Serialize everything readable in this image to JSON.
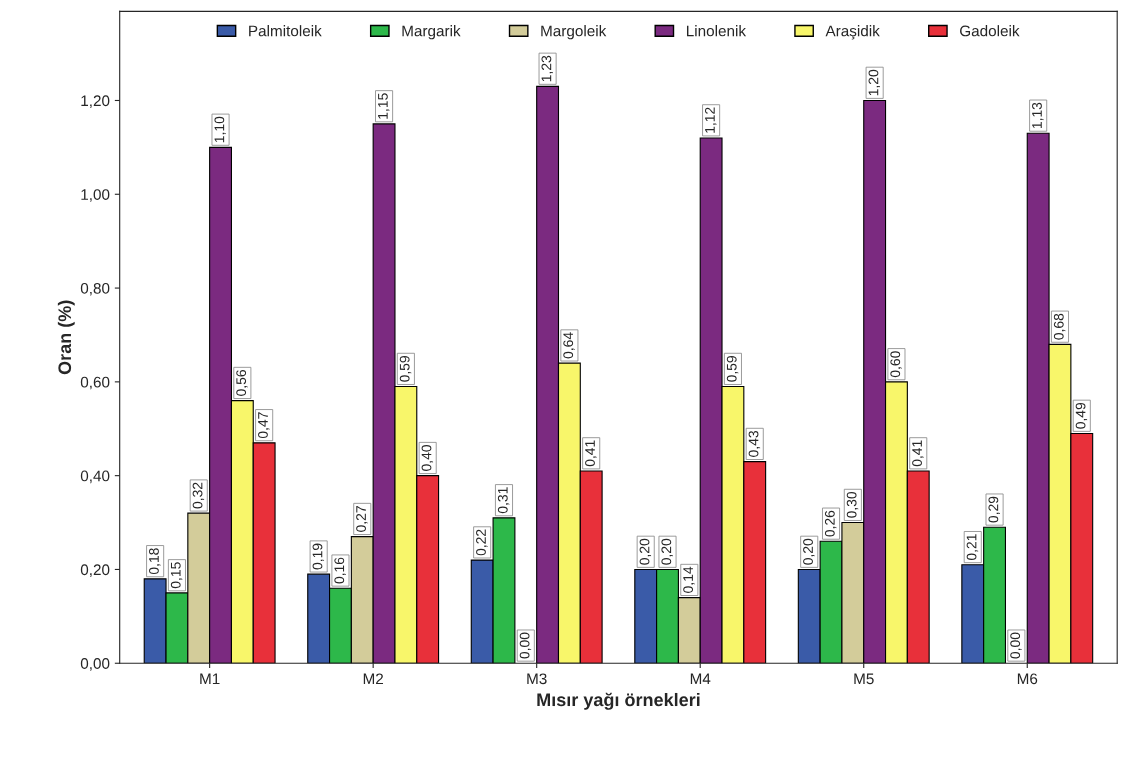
{
  "chart_data": {
    "type": "bar",
    "xlabel": "Mısır yağı örnekleri",
    "ylabel": "Oran (%)",
    "categories": [
      "M1",
      "M2",
      "M3",
      "M4",
      "M5",
      "M6"
    ],
    "series": [
      {
        "name": "Palmitoleik",
        "color": "#3a5ba8",
        "values": [
          0.18,
          0.19,
          0.22,
          0.2,
          0.2,
          0.21
        ],
        "value_labels": [
          "0,18",
          "0,19",
          "0,22",
          "0,20",
          "0,20",
          "0,21"
        ]
      },
      {
        "name": "Margarik",
        "color": "#2db84a",
        "values": [
          0.15,
          0.16,
          0.31,
          0.2,
          0.26,
          0.29
        ],
        "value_labels": [
          "0,15",
          "0,16",
          "0,31",
          "0,20",
          "0,26",
          "0,29"
        ]
      },
      {
        "name": "Margoleik",
        "color": "#d3cc9a",
        "values": [
          0.32,
          0.27,
          0.0,
          0.14,
          0.3,
          0.0
        ],
        "value_labels": [
          "0,32",
          "0,27",
          "0,00",
          "0,14",
          "0,30",
          "0,00"
        ]
      },
      {
        "name": "Linolenik",
        "color": "#7b2a80",
        "values": [
          1.1,
          1.15,
          1.23,
          1.12,
          1.2,
          1.13
        ],
        "value_labels": [
          "1,10",
          "1,15",
          "1,23",
          "1,12",
          "1,20",
          "1,13"
        ]
      },
      {
        "name": "Araşidik",
        "color": "#f8f66a",
        "values": [
          0.56,
          0.59,
          0.64,
          0.59,
          0.6,
          0.68
        ],
        "value_labels": [
          "0,56",
          "0,59",
          "0,64",
          "0,59",
          "0,60",
          "0,68"
        ]
      },
      {
        "name": "Gadoleik",
        "color": "#e8303a",
        "values": [
          0.47,
          0.4,
          0.41,
          0.43,
          0.41,
          0.49
        ],
        "value_labels": [
          "0,47",
          "0,40",
          "0,41",
          "0,43",
          "0,41",
          "0,49"
        ]
      }
    ],
    "ylim": [
      0,
      1.39
    ],
    "yticks": [
      {
        "value": 0,
        "label": "0,00"
      },
      {
        "value": 0.2,
        "label": "0,20"
      },
      {
        "value": 0.4,
        "label": "0,40"
      },
      {
        "value": 0.6,
        "label": "0,60"
      },
      {
        "value": 0.8,
        "label": "0,80"
      },
      {
        "value": 1.0,
        "label": "1,00"
      },
      {
        "value": 1.2,
        "label": "1,20"
      }
    ],
    "legend": "top",
    "grid": false
  }
}
